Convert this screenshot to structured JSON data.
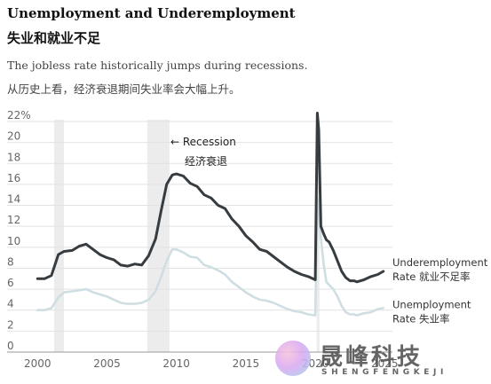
{
  "header": {
    "title": "Unemployment and Underemployment",
    "title_cn": "失业和就业不足",
    "subtitle": "The jobless rate historically jumps during recessions.",
    "subtitle_cn": "从历史上看，经济衰退期间失业率会大幅上升。"
  },
  "watermark": {
    "cn": "晟峰科技",
    "en": "SHENGFENGKEJI"
  },
  "chart_data": {
    "type": "line",
    "title": "Unemployment and Underemployment",
    "ylim": [
      0,
      22
    ],
    "yticks": [
      0,
      2,
      4,
      6,
      8,
      10,
      12,
      14,
      16,
      18,
      20,
      22
    ],
    "ytick_labels": [
      "0",
      "2",
      "4",
      "6",
      "8",
      "10",
      "12",
      "14",
      "16",
      "18",
      "20",
      "22%"
    ],
    "xlim": [
      1999.6,
      2025.3
    ],
    "xticks": [
      2000,
      2005,
      2010,
      2015,
      2020,
      2025
    ],
    "xtick_labels": [
      "2000",
      "2005",
      "2010",
      "2015",
      "2020",
      "2025"
    ],
    "grid": "horizontal",
    "recessions": [
      [
        2001.2,
        2001.9
      ],
      [
        2007.9,
        2009.5
      ],
      [
        2020.1,
        2020.3
      ]
    ],
    "annotation": {
      "text": "← Recession",
      "text_cn": "经济衰退"
    },
    "series": [
      {
        "name": "Underemployment Rate",
        "name_cn": "就业不足率",
        "color": "#363c40",
        "x": [
          2000.0,
          2000.5,
          2001.0,
          2001.5,
          2001.9,
          2002.5,
          2003.0,
          2003.5,
          2004.0,
          2004.5,
          2005.0,
          2005.5,
          2006.0,
          2006.5,
          2007.0,
          2007.5,
          2008.0,
          2008.5,
          2008.9,
          2009.3,
          2009.7,
          2010.0,
          2010.5,
          2011.0,
          2011.5,
          2012.0,
          2012.5,
          2013.0,
          2013.5,
          2014.0,
          2014.5,
          2015.0,
          2015.5,
          2016.0,
          2016.5,
          2017.0,
          2017.5,
          2018.0,
          2018.5,
          2019.0,
          2019.5,
          2020.0,
          2020.15,
          2020.25,
          2020.4,
          2020.6,
          2020.8,
          2021.0,
          2021.3,
          2021.6,
          2021.9,
          2022.2,
          2022.5,
          2022.8,
          2023.0,
          2023.5,
          2024.0,
          2024.5,
          2024.9
        ],
        "values": [
          7.0,
          7.0,
          7.3,
          9.3,
          9.6,
          9.7,
          10.1,
          10.3,
          9.8,
          9.3,
          9.0,
          8.8,
          8.3,
          8.2,
          8.4,
          8.3,
          9.2,
          10.8,
          13.5,
          16.0,
          16.9,
          17.0,
          16.8,
          16.1,
          15.8,
          15.0,
          14.7,
          14.0,
          13.7,
          12.7,
          12.0,
          11.1,
          10.5,
          9.8,
          9.6,
          9.1,
          8.6,
          8.1,
          7.7,
          7.4,
          7.2,
          6.9,
          22.8,
          21.2,
          12.0,
          11.3,
          10.7,
          10.5,
          9.7,
          8.7,
          7.7,
          7.1,
          6.8,
          6.8,
          6.7,
          6.9,
          7.2,
          7.4,
          7.7
        ]
      },
      {
        "name": "Unemployment Rate",
        "name_cn": "失业率",
        "color": "#cfdee2",
        "x": [
          2000.0,
          2000.5,
          2001.0,
          2001.5,
          2001.9,
          2002.5,
          2003.0,
          2003.5,
          2004.0,
          2004.5,
          2005.0,
          2005.5,
          2006.0,
          2006.5,
          2007.0,
          2007.5,
          2008.0,
          2008.5,
          2008.9,
          2009.3,
          2009.7,
          2010.0,
          2010.5,
          2011.0,
          2011.5,
          2012.0,
          2012.5,
          2013.0,
          2013.5,
          2014.0,
          2014.5,
          2015.0,
          2015.5,
          2016.0,
          2016.5,
          2017.0,
          2017.5,
          2018.0,
          2018.5,
          2019.0,
          2019.5,
          2020.0,
          2020.15,
          2020.25,
          2020.4,
          2020.6,
          2020.8,
          2021.0,
          2021.3,
          2021.6,
          2021.9,
          2022.2,
          2022.5,
          2022.8,
          2023.0,
          2023.5,
          2024.0,
          2024.5,
          2024.9
        ],
        "values": [
          4.0,
          4.0,
          4.2,
          5.2,
          5.7,
          5.8,
          5.9,
          6.0,
          5.7,
          5.5,
          5.3,
          5.0,
          4.7,
          4.6,
          4.6,
          4.7,
          5.0,
          5.8,
          7.2,
          8.7,
          9.8,
          9.8,
          9.5,
          9.1,
          9.0,
          8.3,
          8.1,
          7.8,
          7.4,
          6.7,
          6.2,
          5.7,
          5.3,
          5.0,
          4.9,
          4.7,
          4.4,
          4.1,
          3.9,
          3.8,
          3.6,
          3.5,
          14.7,
          13.2,
          10.9,
          8.4,
          6.7,
          6.4,
          6.0,
          5.3,
          4.4,
          3.8,
          3.6,
          3.6,
          3.5,
          3.7,
          3.8,
          4.1,
          4.2
        ]
      }
    ]
  }
}
